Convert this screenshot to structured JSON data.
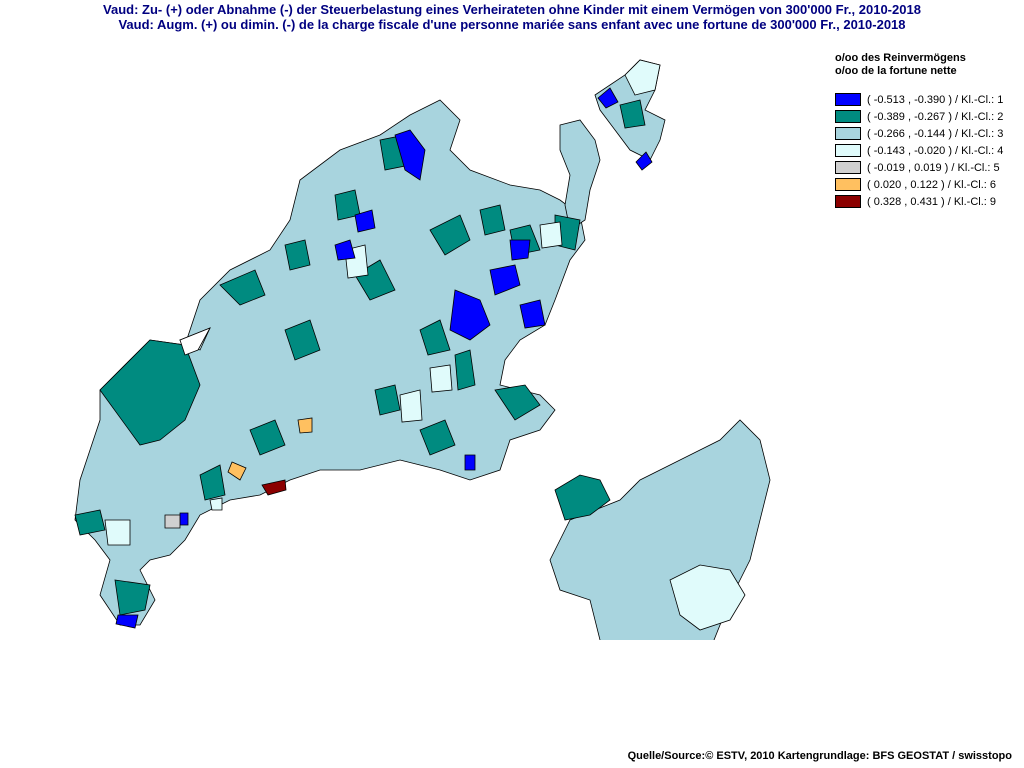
{
  "title": {
    "line1": "Vaud: Zu- (+) oder Abnahme (-) der Steuerbelastung  eines Verheirateten ohne Kinder mit einem Vermögen von 300'000 Fr., 2010-2018",
    "line2": "Vaud: Augm. (+) ou dimin. (-) de la charge fiscale d'une personne mariée sans enfant avec une fortune de 300'000 Fr., 2010-2018"
  },
  "legend": {
    "unit_de": "o/oo des Reinvermögens",
    "unit_fr": "o/oo de la fortune nette",
    "classes": [
      {
        "label": "( -0.513 , -0.390 ) / Kl.-Cl.: 1",
        "color": "#0000ff"
      },
      {
        "label": "( -0.389 , -0.267 ) / Kl.-Cl.: 2",
        "color": "#008b80"
      },
      {
        "label": "( -0.266 , -0.144 ) / Kl.-Cl.: 3",
        "color": "#a8d4de"
      },
      {
        "label": "( -0.143 , -0.020 ) / Kl.-Cl.: 4",
        "color": "#e0fbfb"
      },
      {
        "label": "( -0.019 , 0.019 ) / Kl.-Cl.: 5",
        "color": "#d0d0d0"
      },
      {
        "label": "( 0.020 , 0.122 ) / Kl.-Cl.: 6",
        "color": "#ffc060"
      },
      {
        "label": "( 0.328 , 0.431 ) / Kl.-Cl.: 9",
        "color": "#8b0000"
      }
    ]
  },
  "source": "Quelle/Source:© ESTV, 2010 Kartengrundlage: BFS GEOSTAT / swisstopo"
}
